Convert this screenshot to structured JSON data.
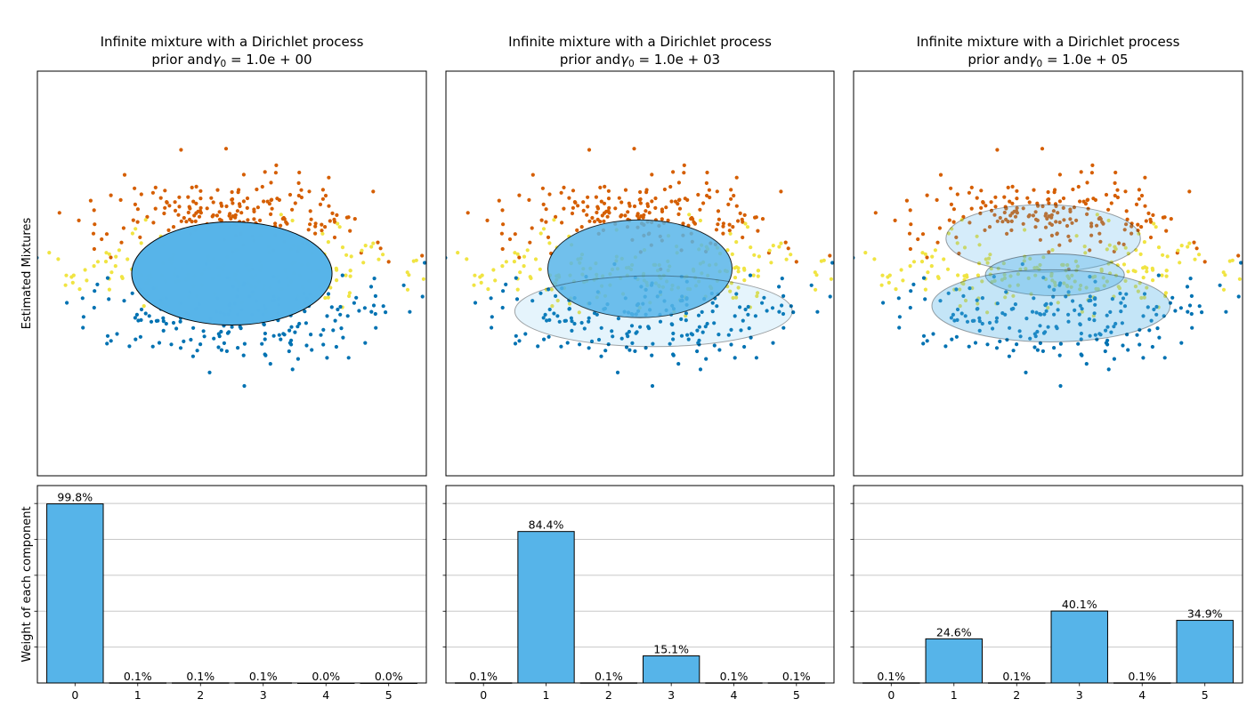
{
  "colors": {
    "bar": "#56B4E9",
    "ellipse": "#56B4E9",
    "grid": "#c8c8c8",
    "clusters": [
      "#D55E00",
      "#F0E442",
      "#0072B2"
    ]
  },
  "chart_data": [
    {
      "type": "scatter",
      "panel": 0,
      "title_line1": "Infinite mixture with a Dirichlet process",
      "title_prefix": "prior and",
      "title_gamma": "γ",
      "title_sub": "0",
      "title_rest": " = 1.0e + 00",
      "ylabel": "Estimated Mixtures",
      "xlim": [
        -2,
        2
      ],
      "ylim": [
        -3,
        3
      ],
      "ticks": false,
      "ellipses": [
        {
          "center": [
            0.0,
            0.0
          ],
          "width": 2.06,
          "height": 1.53,
          "angle": 0,
          "alpha": 0.998
        }
      ]
    },
    {
      "type": "scatter",
      "panel": 1,
      "title_line1": "Infinite mixture with a Dirichlet process",
      "title_prefix": "prior and",
      "title_gamma": "γ",
      "title_sub": "0",
      "title_rest": " = 1.0e + 03",
      "ylabel": "",
      "xlim": [
        -2,
        2
      ],
      "ylim": [
        -3,
        3
      ],
      "ticks": false,
      "ellipses": [
        {
          "center": [
            0.0,
            0.07
          ],
          "width": 1.9,
          "height": 1.45,
          "angle": 0,
          "alpha": 0.844
        },
        {
          "center": [
            0.14,
            -0.56
          ],
          "width": 2.86,
          "height": 1.05,
          "angle": 0,
          "alpha": 0.151
        }
      ]
    },
    {
      "type": "scatter",
      "panel": 2,
      "title_line1": "Infinite mixture with a Dirichlet process",
      "title_prefix": "prior and",
      "title_gamma": "γ",
      "title_sub": "0",
      "title_rest": " = 1.0e + 05",
      "ylabel": "",
      "xlim": [
        -2,
        2
      ],
      "ylim": [
        -3,
        3
      ],
      "ticks": false,
      "ellipses": [
        {
          "center": [
            -0.05,
            0.52
          ],
          "width": 2.0,
          "height": 1.0,
          "angle": 0,
          "alpha": 0.246
        },
        {
          "center": [
            0.07,
            -0.02
          ],
          "width": 1.43,
          "height": 0.62,
          "angle": 0,
          "alpha": 0.401
        },
        {
          "center": [
            0.03,
            -0.48
          ],
          "width": 2.45,
          "height": 1.07,
          "angle": 0,
          "alpha": 0.349
        }
      ]
    },
    {
      "type": "bar",
      "panel": 0,
      "ylabel": "Weight of each component",
      "categories": [
        "0",
        "1",
        "2",
        "3",
        "4",
        "5"
      ],
      "values": [
        0.998,
        0.001,
        0.001,
        0.001,
        0.0,
        0.0
      ],
      "labels": [
        "99.8%",
        "0.1%",
        "0.1%",
        "0.1%",
        "0.0%",
        "0.0%"
      ],
      "xlim": [
        -0.6,
        5.6
      ],
      "ylim": [
        0,
        1.1
      ],
      "grid": "y",
      "ytick_labels": false
    },
    {
      "type": "bar",
      "panel": 1,
      "ylabel": "",
      "categories": [
        "0",
        "1",
        "2",
        "3",
        "4",
        "5"
      ],
      "values": [
        0.001,
        0.844,
        0.001,
        0.151,
        0.001,
        0.001
      ],
      "labels": [
        "0.1%",
        "84.4%",
        "0.1%",
        "15.1%",
        "0.1%",
        "0.1%"
      ],
      "xlim": [
        -0.6,
        5.6
      ],
      "ylim": [
        0,
        1.1
      ],
      "grid": "y",
      "ytick_labels": false
    },
    {
      "type": "bar",
      "panel": 2,
      "ylabel": "",
      "categories": [
        "0",
        "1",
        "2",
        "3",
        "4",
        "5"
      ],
      "values": [
        0.001,
        0.246,
        0.001,
        0.401,
        0.001,
        0.349
      ],
      "labels": [
        "0.1%",
        "24.6%",
        "0.1%",
        "40.1%",
        "0.1%",
        "34.9%"
      ],
      "xlim": [
        -0.6,
        5.6
      ],
      "ylim": [
        0,
        1.1
      ],
      "grid": "y",
      "ytick_labels": false
    }
  ]
}
